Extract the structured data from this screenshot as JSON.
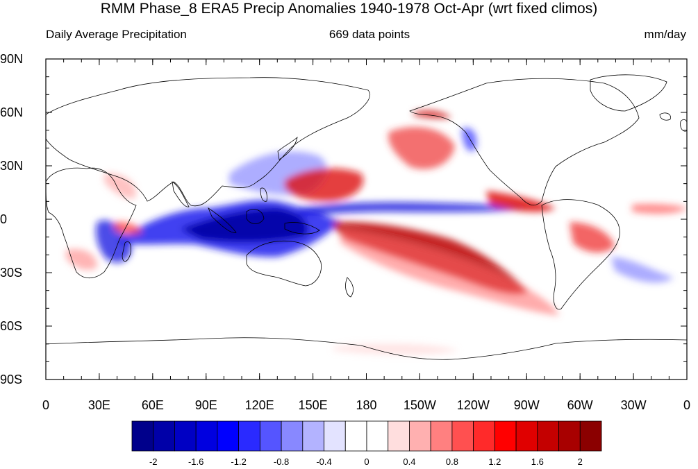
{
  "header": {
    "title": "RMM Phase_8 ERA5 Precip Anomalies 1940-1978 Oct-Apr (wrt fixed climos)",
    "left_subtitle": "Daily Average Precipitation",
    "center_subtitle": "669 data points",
    "right_subtitle": "mm/day"
  },
  "axes": {
    "lat_labels": [
      "90N",
      "60N",
      "30N",
      "0",
      "30S",
      "60S",
      "90S"
    ],
    "lon_labels": [
      "0",
      "30E",
      "60E",
      "90E",
      "120E",
      "150E",
      "180",
      "150W",
      "120W",
      "90W",
      "60W",
      "30W",
      "0"
    ]
  },
  "colorbar": {
    "colors": [
      "#00008b",
      "#0000a8",
      "#0000c4",
      "#0000e0",
      "#0000ff",
      "#2a2aff",
      "#5555ff",
      "#8888ff",
      "#b3b3ff",
      "#e3e3ff",
      "#ffffff",
      "#ffffff",
      "#ffdede",
      "#ffb0b0",
      "#ff8080",
      "#ff5050",
      "#ff2a2a",
      "#ff0000",
      "#e00000",
      "#c40000",
      "#a80000",
      "#8b0000"
    ],
    "tick_labels": [
      "-2",
      "-1.6",
      "-1.2",
      "-0.8",
      "-0.4",
      "0",
      "0.4",
      "0.8",
      "1.2",
      "1.6",
      "2"
    ]
  }
}
